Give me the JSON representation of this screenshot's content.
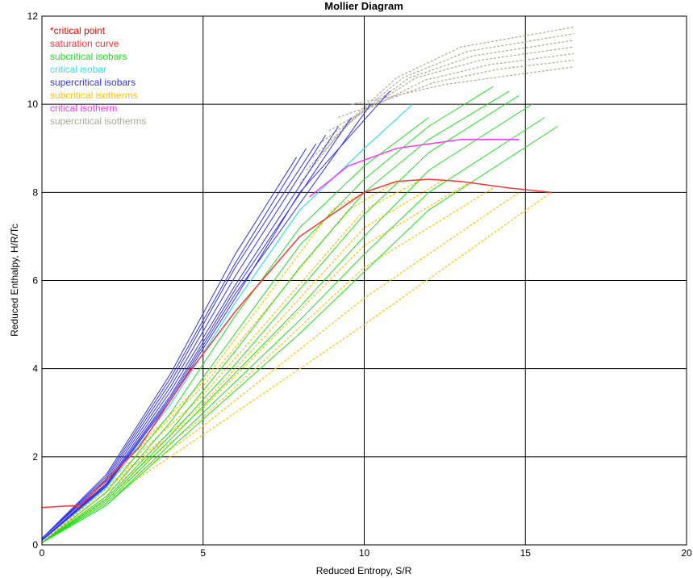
{
  "chart_data": {
    "type": "line",
    "title": "Mollier Diagram",
    "xlabel": "Reduced Entropy, S/R",
    "ylabel": "Reduced Enthalpy, H/R/Tc",
    "xlim": [
      0,
      20
    ],
    "ylim": [
      0,
      12
    ],
    "xticks": [
      0,
      5,
      10,
      15,
      20
    ],
    "yticks": [
      0,
      2,
      4,
      6,
      8,
      10,
      12
    ],
    "grid": true,
    "legend_position": "top-left",
    "legend": [
      {
        "label": "*critical point",
        "color": "#ff0000"
      },
      {
        "label": "saturation curve",
        "color": "#ff3333"
      },
      {
        "label": "subcritical isobars",
        "color": "#22dd22"
      },
      {
        "label": "critical isobar",
        "color": "#33e0e0"
      },
      {
        "label": "supercritical isobars",
        "color": "#3333ee"
      },
      {
        "label": "subcritical isotherms",
        "color": "#ffc000"
      },
      {
        "label": "critical isotherm",
        "color": "#ff33ff"
      },
      {
        "label": "supercritical isotherms",
        "color": "#b0a898"
      }
    ],
    "critical_point": {
      "x": 4.6,
      "y": 3.95
    },
    "saturation_curve": {
      "x": [
        0,
        1.2,
        3.0,
        4.6,
        6.0,
        8.0,
        10.0,
        11.0,
        12.0,
        13.0,
        14.5,
        15.8
      ],
      "y": [
        0.85,
        0.9,
        2.2,
        3.95,
        5.3,
        7.0,
        8.0,
        8.25,
        8.3,
        8.25,
        8.1,
        8.0
      ]
    },
    "subcritical_isobars": [
      {
        "x": [
          0,
          2,
          4,
          6,
          8,
          10,
          12
        ],
        "y": [
          0.05,
          1.2,
          3.0,
          5.2,
          7.2,
          8.6,
          9.7
        ]
      },
      {
        "x": [
          0,
          2,
          4,
          6,
          8,
          10,
          12,
          14
        ],
        "y": [
          0.05,
          1.1,
          2.8,
          4.8,
          6.8,
          8.3,
          9.5,
          10.4
        ]
      },
      {
        "x": [
          0,
          2,
          4,
          6,
          8,
          10,
          12,
          14.5
        ],
        "y": [
          0.05,
          1.05,
          2.6,
          4.4,
          6.3,
          8.0,
          9.2,
          10.3
        ]
      },
      {
        "x": [
          0,
          2,
          4,
          6,
          8,
          10,
          12,
          14.8
        ],
        "y": [
          0.05,
          1.0,
          2.5,
          4.1,
          5.8,
          7.5,
          8.9,
          10.2
        ]
      },
      {
        "x": [
          0,
          2,
          4,
          6,
          8,
          10,
          12,
          15.2
        ],
        "y": [
          0.05,
          0.95,
          2.4,
          3.9,
          5.4,
          7.0,
          8.5,
          10.0
        ]
      },
      {
        "x": [
          0,
          2,
          4,
          6,
          8,
          10,
          12,
          15.6
        ],
        "y": [
          0.05,
          0.9,
          2.3,
          3.7,
          5.1,
          6.6,
          8.0,
          9.7
        ]
      },
      {
        "x": [
          0,
          2,
          4,
          6,
          8,
          10,
          12,
          16.0
        ],
        "y": [
          0.05,
          0.9,
          2.2,
          3.5,
          4.8,
          6.2,
          7.6,
          9.5
        ]
      }
    ],
    "critical_isobar": {
      "x": [
        0,
        2,
        4,
        6,
        8,
        10,
        11.5
      ],
      "y": [
        0.1,
        1.3,
        3.2,
        5.5,
        7.6,
        9.0,
        10.0
      ]
    },
    "supercritical_isobars": [
      {
        "x": [
          0,
          2,
          4,
          6,
          7.9
        ],
        "y": [
          0.15,
          1.6,
          3.9,
          6.6,
          8.8
        ]
      },
      {
        "x": [
          0,
          2,
          4,
          6,
          8.2
        ],
        "y": [
          0.15,
          1.55,
          3.8,
          6.4,
          9.0
        ]
      },
      {
        "x": [
          0,
          2,
          4,
          6,
          8.5
        ],
        "y": [
          0.15,
          1.5,
          3.7,
          6.3,
          9.1
        ]
      },
      {
        "x": [
          0,
          2,
          4,
          6,
          8.8
        ],
        "y": [
          0.15,
          1.45,
          3.6,
          6.1,
          9.3
        ]
      },
      {
        "x": [
          0,
          2,
          4,
          6,
          9.2
        ],
        "y": [
          0.12,
          1.4,
          3.5,
          5.9,
          9.5
        ]
      },
      {
        "x": [
          0,
          2,
          4,
          6,
          9.6
        ],
        "y": [
          0.12,
          1.38,
          3.4,
          5.8,
          9.7
        ]
      },
      {
        "x": [
          0,
          2,
          4,
          6,
          10.2
        ],
        "y": [
          0.12,
          1.35,
          3.35,
          5.7,
          10.0
        ]
      },
      {
        "x": [
          0,
          2,
          4,
          6,
          8,
          10.8
        ],
        "y": [
          0.1,
          1.33,
          3.3,
          5.6,
          8.0,
          10.3
        ]
      }
    ],
    "subcritical_isotherms": [
      {
        "x": [
          0,
          5,
          10,
          15.8
        ],
        "y": [
          0.05,
          2.5,
          5.0,
          8.0
        ]
      },
      {
        "x": [
          0,
          5,
          10,
          14.8
        ],
        "y": [
          0.05,
          2.7,
          5.6,
          8.0
        ]
      },
      {
        "x": [
          0,
          5,
          10,
          14.0
        ],
        "y": [
          0.05,
          2.9,
          6.3,
          8.1
        ]
      },
      {
        "x": [
          0,
          5,
          10,
          13.2
        ],
        "y": [
          0.05,
          3.1,
          6.8,
          8.2
        ]
      },
      {
        "x": [
          0,
          5,
          10,
          12.5
        ],
        "y": [
          0.05,
          3.2,
          7.2,
          8.3
        ]
      },
      {
        "x": [
          0,
          5,
          10,
          11.8
        ],
        "y": [
          0.05,
          3.4,
          7.6,
          8.3
        ]
      },
      {
        "x": [
          0,
          5,
          9.5,
          11.0
        ],
        "y": [
          0.05,
          3.6,
          7.6,
          8.25
        ]
      },
      {
        "x": [
          0,
          5,
          9.0,
          10.0
        ],
        "y": [
          0.05,
          3.7,
          7.6,
          8.0
        ]
      }
    ],
    "critical_isotherm": {
      "x": [
        8.3,
        9.5,
        11.0,
        13.0,
        14.8
      ],
      "y": [
        7.9,
        8.6,
        9.0,
        9.2,
        9.2
      ]
    },
    "supercritical_isotherms": [
      {
        "x": [
          8.0,
          9.5,
          11.0,
          13.0,
          16.5
        ],
        "y": [
          8.2,
          9.6,
          10.6,
          11.3,
          11.75
        ]
      },
      {
        "x": [
          8.2,
          9.7,
          11.2,
          13.2,
          16.5
        ],
        "y": [
          8.5,
          9.7,
          10.6,
          11.2,
          11.6
        ]
      },
      {
        "x": [
          8.4,
          9.9,
          11.4,
          13.4,
          16.5
        ],
        "y": [
          8.8,
          9.8,
          10.6,
          11.1,
          11.45
        ]
      },
      {
        "x": [
          8.6,
          10.1,
          11.6,
          13.6,
          16.5
        ],
        "y": [
          9.1,
          9.9,
          10.6,
          11.0,
          11.3
        ]
      },
      {
        "x": [
          8.9,
          10.4,
          11.9,
          13.9,
          16.5
        ],
        "y": [
          9.4,
          10.0,
          10.55,
          10.9,
          11.15
        ]
      },
      {
        "x": [
          9.2,
          10.7,
          12.2,
          14.2,
          16.5
        ],
        "y": [
          9.7,
          10.1,
          10.5,
          10.8,
          11.0
        ]
      },
      {
        "x": [
          9.6,
          11.0,
          12.5,
          14.5,
          16.5
        ],
        "y": [
          10.0,
          10.2,
          10.45,
          10.65,
          10.85
        ]
      }
    ]
  }
}
